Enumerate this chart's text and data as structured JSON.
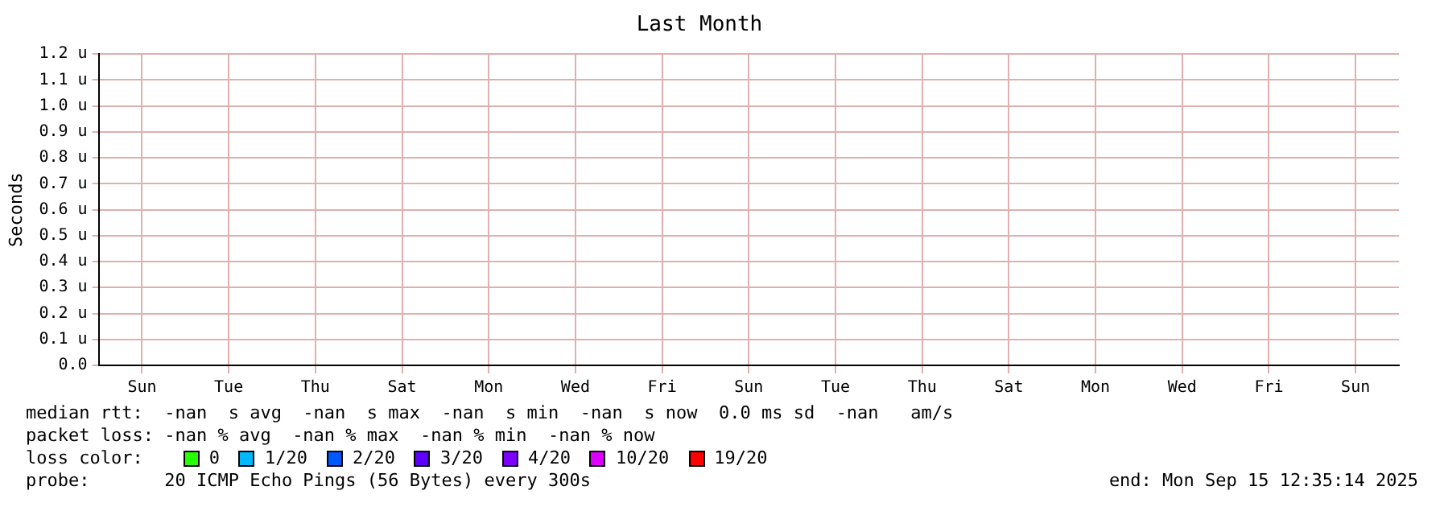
{
  "chart_data": {
    "type": "line",
    "title": "Last Month",
    "ylabel": "Seconds",
    "legend_title": "loss color:",
    "categories": [
      "Sun",
      "Tue",
      "Thu",
      "Sat",
      "Mon",
      "Wed",
      "Fri",
      "Sun",
      "Tue",
      "Thu",
      "Sat",
      "Mon",
      "Wed",
      "Fri",
      "Sun"
    ],
    "series": [
      {
        "name": "0",
        "color": "#26ff00",
        "values": [
          null,
          null,
          null,
          null,
          null,
          null,
          null,
          null,
          null,
          null,
          null,
          null,
          null,
          null,
          null
        ]
      },
      {
        "name": "1/20",
        "color": "#00b8ff",
        "values": [
          null,
          null,
          null,
          null,
          null,
          null,
          null,
          null,
          null,
          null,
          null,
          null,
          null,
          null,
          null
        ]
      },
      {
        "name": "2/20",
        "color": "#0059ff",
        "values": [
          null,
          null,
          null,
          null,
          null,
          null,
          null,
          null,
          null,
          null,
          null,
          null,
          null,
          null,
          null
        ]
      },
      {
        "name": "3/20",
        "color": "#5e00ff",
        "values": [
          null,
          null,
          null,
          null,
          null,
          null,
          null,
          null,
          null,
          null,
          null,
          null,
          null,
          null,
          null
        ]
      },
      {
        "name": "4/20",
        "color": "#7e00ff",
        "values": [
          null,
          null,
          null,
          null,
          null,
          null,
          null,
          null,
          null,
          null,
          null,
          null,
          null,
          null,
          null
        ]
      },
      {
        "name": "10/20",
        "color": "#dd00ff",
        "values": [
          null,
          null,
          null,
          null,
          null,
          null,
          null,
          null,
          null,
          null,
          null,
          null,
          null,
          null,
          null
        ]
      },
      {
        "name": "19/20",
        "color": "#ff0000",
        "values": [
          null,
          null,
          null,
          null,
          null,
          null,
          null,
          null,
          null,
          null,
          null,
          null,
          null,
          null,
          null
        ]
      }
    ],
    "ylim": [
      0,
      1.2
    ],
    "yticks": [
      {
        "value": 0,
        "label": "0.0"
      },
      {
        "value": 0.1,
        "label": "0.1 u"
      },
      {
        "value": 0.2,
        "label": "0.2 u"
      },
      {
        "value": 0.3,
        "label": "0.3 u"
      },
      {
        "value": 0.4,
        "label": "0.4 u"
      },
      {
        "value": 0.5,
        "label": "0.5 u"
      },
      {
        "value": 0.6,
        "label": "0.6 u"
      },
      {
        "value": 0.7,
        "label": "0.7 u"
      },
      {
        "value": 0.8,
        "label": "0.8 u"
      },
      {
        "value": 0.9,
        "label": "0.9 u"
      },
      {
        "value": 1.0,
        "label": "1.0 u"
      },
      {
        "value": 1.1,
        "label": "1.1 u"
      },
      {
        "value": 1.2,
        "label": "1.2 u"
      }
    ],
    "grid": true,
    "legend": "bottom",
    "annotations": [
      "median rtt:  -nan  s avg  -nan  s max  -nan  s min  -nan  s now  0.0 ms sd  -nan   am/s",
      "packet loss: -nan % avg  -nan % max  -nan % min  -nan % now",
      "probe:       20 ICMP Echo Pings (56 Bytes) every 300s",
      "end: Mon Sep 15 12:35:14 2025"
    ]
  }
}
